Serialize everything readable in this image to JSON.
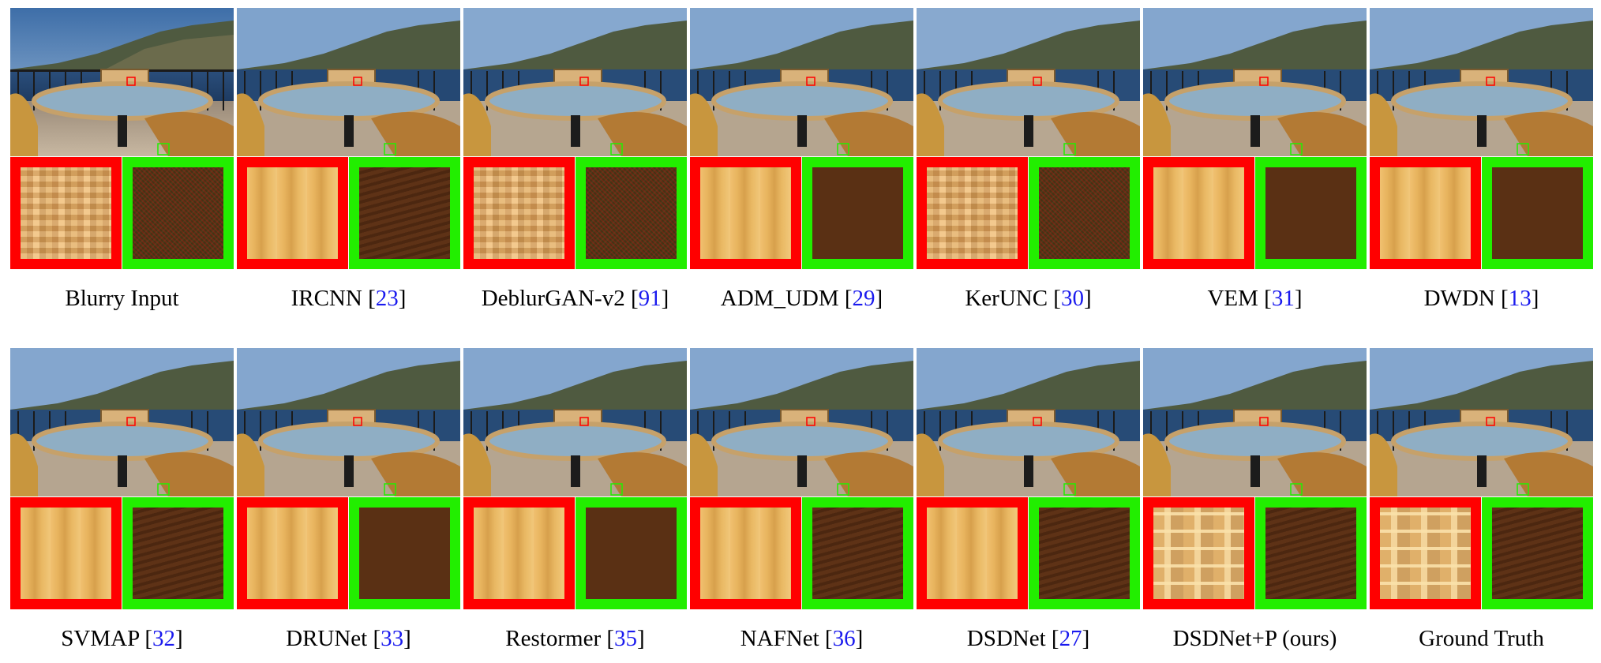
{
  "figure": {
    "row1": [
      {
        "method": "Blurry Input",
        "ref": ""
      },
      {
        "method": "IRCNN",
        "ref": "23"
      },
      {
        "method": "DeblurGAN-v2",
        "ref": "91"
      },
      {
        "method": "ADM_UDM",
        "ref": "29"
      },
      {
        "method": "KerUNC",
        "ref": "30"
      },
      {
        "method": "VEM",
        "ref": "31"
      },
      {
        "method": "DWDN",
        "ref": "13"
      }
    ],
    "row2": [
      {
        "method": "SVMAP",
        "ref": "32"
      },
      {
        "method": "DRUNet",
        "ref": "33"
      },
      {
        "method": "Restormer",
        "ref": "35"
      },
      {
        "method": "NAFNet",
        "ref": "36"
      },
      {
        "method": "DSDNet",
        "ref": "27"
      },
      {
        "method": "DSDNet+P (ours)",
        "ref": ""
      },
      {
        "method": "Ground Truth",
        "ref": ""
      }
    ]
  },
  "colors": {
    "red_box": "#ff0000",
    "green_box": "#22ee00",
    "citation": "#1a1aee"
  }
}
